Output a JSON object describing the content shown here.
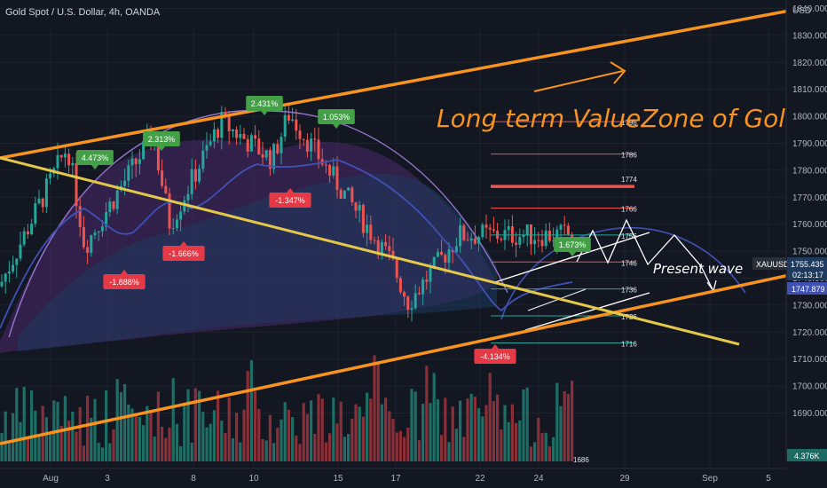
{
  "header": {
    "title": "Gold Spot / U.S. Dollar, 4h, OANDA"
  },
  "annotations": {
    "headline": "Long term ValueZone of Gold",
    "wave_label": "Present wave"
  },
  "price_axis": {
    "currency": "USD",
    "ticks": [
      "1840.000",
      "1830.000",
      "1820.000",
      "1810.000",
      "1800.000",
      "1790.000",
      "1780.000",
      "1770.000",
      "1760.000",
      "1750.000",
      "1740.000",
      "1730.000",
      "1720.000",
      "1710.000",
      "1700.000",
      "1690.000"
    ],
    "symbol_badge": "XAUUSD",
    "last_price": "1755.435",
    "countdown": "02:13:17",
    "ma_value": "1747.879",
    "volume_badge": "4.376K"
  },
  "time_axis": {
    "labels": [
      "Aug",
      "3",
      "8",
      "10",
      "15",
      "17",
      "22",
      "24",
      "29",
      "Sep",
      "5"
    ]
  },
  "levels": [
    "1798",
    "1786",
    "1774",
    "1766",
    "1756",
    "1746",
    "1736",
    "1726",
    "1716",
    "1686"
  ],
  "colors": {
    "background": "#131722",
    "up": "#26a69a",
    "down": "#ef5350",
    "trend": "#f7931e",
    "ma": "#3f51b5",
    "yellow": "#e3c84a",
    "arc": "#7e57c2"
  },
  "chart_data": {
    "type": "candlestick",
    "title": "Gold Spot / U.S. Dollar, 4h, OANDA",
    "ylabel": "USD",
    "ylim": [
      1688,
      1846
    ],
    "xlim": [
      "Jul 29",
      "Sep 6"
    ],
    "pct_labels": [
      {
        "text": "4.473%",
        "dir": "up"
      },
      {
        "text": "2.313%",
        "dir": "up"
      },
      {
        "text": "2.431%",
        "dir": "up"
      },
      {
        "text": "1.053%",
        "dir": "up"
      },
      {
        "text": "1.673%",
        "dir": "up"
      },
      {
        "text": "-1.888%",
        "dir": "down"
      },
      {
        "text": "-1.666%",
        "dir": "down"
      },
      {
        "text": "-1.347%",
        "dir": "down"
      },
      {
        "text": "-4.134%",
        "dir": "down"
      }
    ],
    "key_price_levels": [
      1798,
      1786,
      1774,
      1766,
      1756,
      1746,
      1736,
      1726,
      1716
    ],
    "price_path": [
      {
        "x": "Jul 29",
        "y": 1737
      },
      {
        "x": "Aug 2",
        "y": 1789
      },
      {
        "x": "Aug 3",
        "y": 1752
      },
      {
        "x": "Aug 7",
        "y": 1793
      },
      {
        "x": "Aug 8",
        "y": 1760
      },
      {
        "x": "Aug 11",
        "y": 1798
      },
      {
        "x": "Aug 14",
        "y": 1784
      },
      {
        "x": "Aug 15",
        "y": 1801
      },
      {
        "x": "Aug 21",
        "y": 1746
      },
      {
        "x": "Aug 22",
        "y": 1731
      },
      {
        "x": "Aug 25",
        "y": 1756
      }
    ],
    "last_price": 1755.435,
    "ma_last": 1747.879
  }
}
